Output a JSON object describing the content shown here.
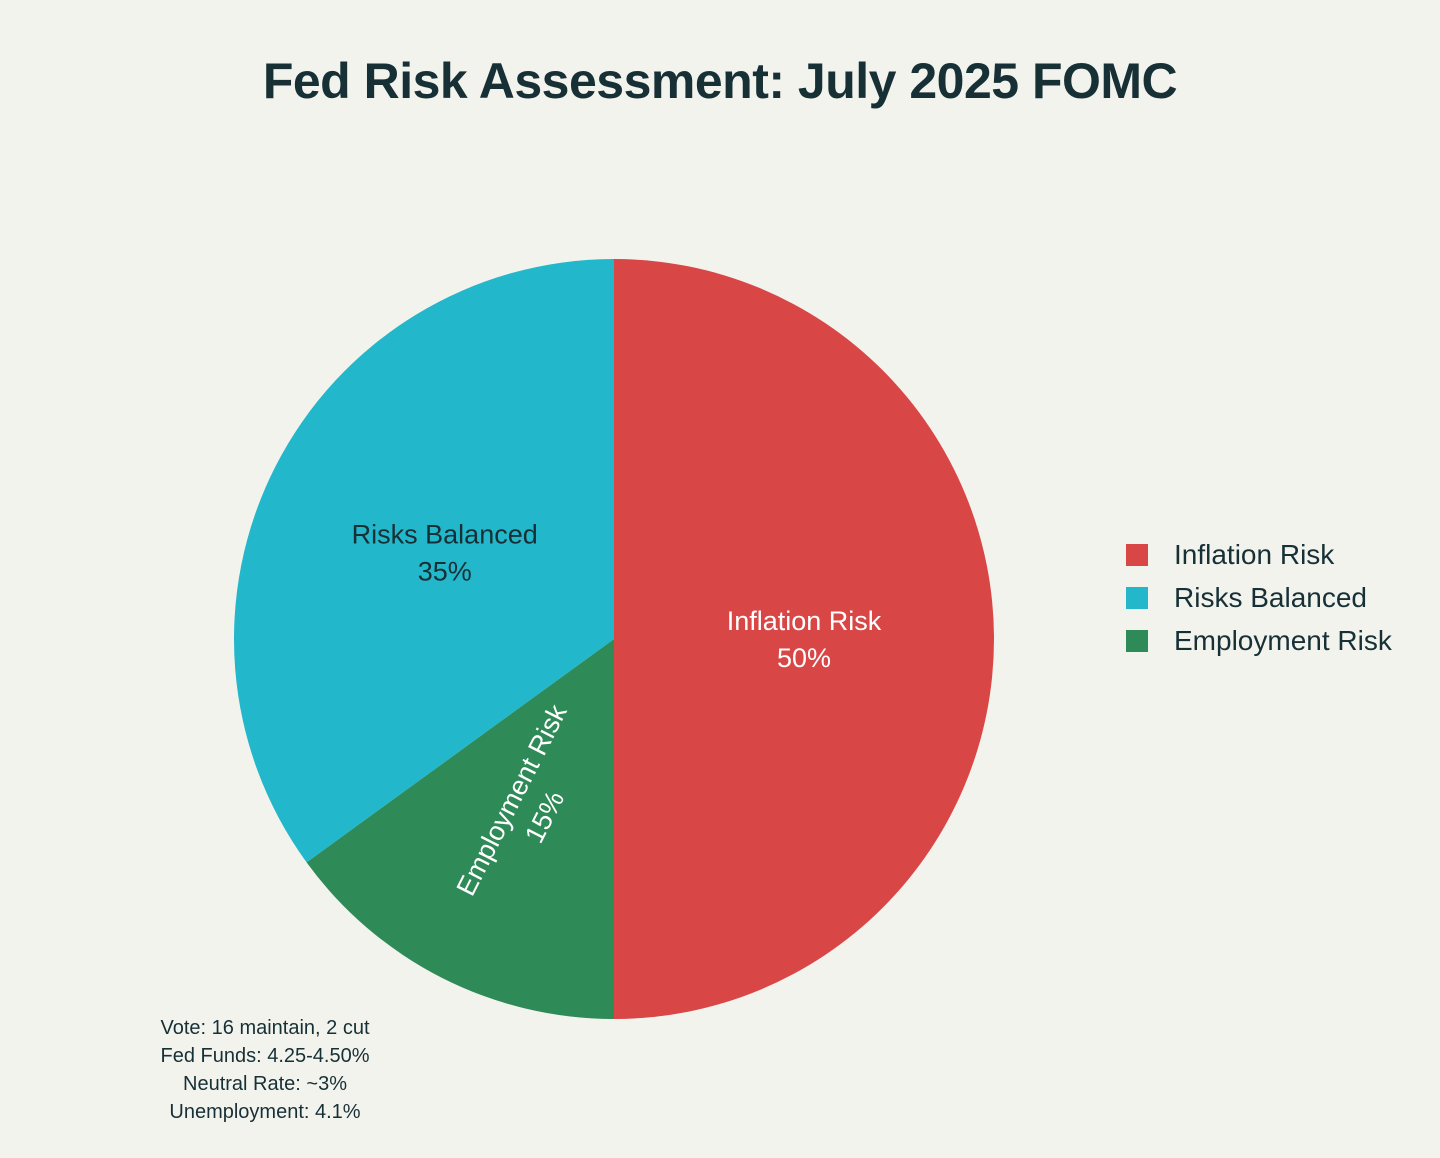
{
  "chart_data": {
    "type": "pie",
    "title": "Fed Risk Assessment: July 2025 FOMC",
    "slices": [
      {
        "label": "Inflation Risk",
        "value": 50,
        "value_label": "50%",
        "color": "#d94646",
        "text_color": "#ffffff"
      },
      {
        "label": "Employment Risk",
        "value": 15,
        "value_label": "15%",
        "color": "#2e8a57",
        "text_color": "#ffffff"
      },
      {
        "label": "Risks Balanced",
        "value": 35,
        "value_label": "35%",
        "color": "#22b7cb",
        "text_color": "#173036"
      }
    ],
    "legend": {
      "position": "right",
      "items": [
        {
          "label": "Inflation Risk",
          "color": "#d94646"
        },
        {
          "label": "Risks Balanced",
          "color": "#22b7cb"
        },
        {
          "label": "Employment Risk",
          "color": "#2e8a57"
        }
      ]
    },
    "annotations": [
      "Vote: 16 maintain, 2 cut",
      "Fed Funds: 4.25-4.50%",
      "Neutral Rate: ~3%",
      "Unemployment: 4.1%"
    ]
  },
  "colors": {
    "background": "#f3f3ee",
    "text": "#173036"
  }
}
